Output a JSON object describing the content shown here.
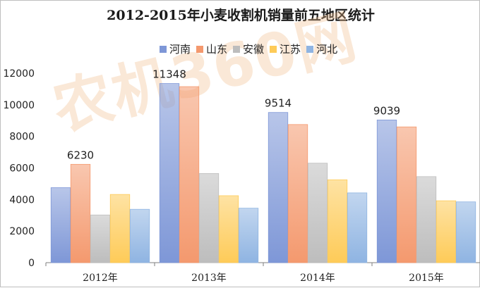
{
  "chart_data": {
    "type": "bar",
    "title": "2012-2015年小麦收割机销量前五地区统计",
    "categories": [
      "2012年",
      "2013年",
      "2014年",
      "2015年"
    ],
    "series": [
      {
        "name": "河南",
        "color": "#7e97d7",
        "values": [
          4750,
          11348,
          9514,
          9039
        ]
      },
      {
        "name": "山东",
        "color": "#f4996e",
        "values": [
          6230,
          11150,
          8750,
          8600
        ]
      },
      {
        "name": "安徽",
        "color": "#bdbdbd",
        "values": [
          3020,
          5650,
          6300,
          5450
        ]
      },
      {
        "name": "江苏",
        "color": "#fecb58",
        "values": [
          4320,
          4240,
          5250,
          3920
        ]
      },
      {
        "name": "河北",
        "color": "#8fb4e2",
        "values": [
          3380,
          3450,
          4420,
          3850
        ]
      }
    ],
    "data_labels": [
      {
        "category": "2012年",
        "series": "山东",
        "text": "6230"
      },
      {
        "category": "2013年",
        "series": "河南",
        "text": "11348"
      },
      {
        "category": "2014年",
        "series": "河南",
        "text": "9514"
      },
      {
        "category": "2015年",
        "series": "河南",
        "text": "9039"
      }
    ],
    "ylim": [
      0,
      12000
    ],
    "yticks": [
      0,
      2000,
      4000,
      6000,
      8000,
      10000,
      12000
    ],
    "grid": false,
    "legend_position": "top"
  },
  "watermark": "农机360网"
}
